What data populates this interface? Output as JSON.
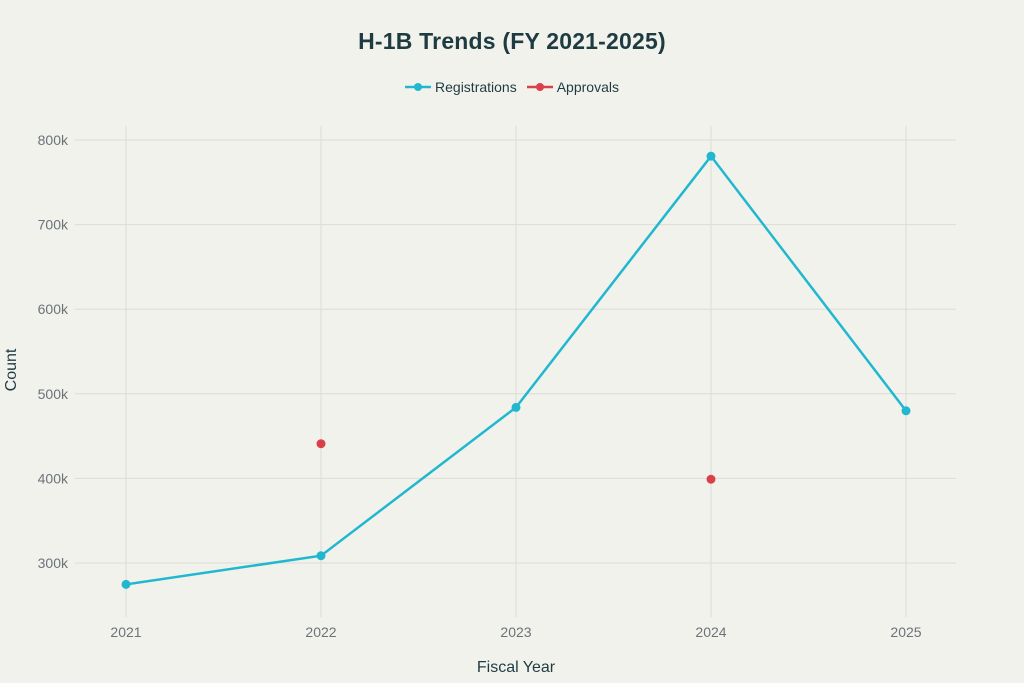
{
  "title": "H-1B Trends (FY 2021-2025)",
  "legend": [
    {
      "label": "Registrations",
      "color": "#21b8cf"
    },
    {
      "label": "Approvals",
      "color": "#d9404a"
    }
  ],
  "axes": {
    "x_title": "Fiscal Year",
    "y_title": "Count",
    "x_ticks": [
      "2021",
      "2022",
      "2023",
      "2024",
      "2025"
    ],
    "y_ticks": [
      "300k",
      "400k",
      "500k",
      "600k",
      "700k",
      "800k"
    ]
  },
  "chart_data": {
    "type": "line",
    "title": "H-1B Trends (FY 2021-2025)",
    "xlabel": "Fiscal Year",
    "ylabel": "Count",
    "categories": [
      "2021",
      "2022",
      "2023",
      "2024",
      "2025"
    ],
    "series": [
      {
        "name": "Registrations",
        "mode": "lines+markers",
        "color": "#21b8cf",
        "values": [
          274737,
          308613,
          483927,
          780884,
          479953
        ]
      },
      {
        "name": "Approvals",
        "mode": "markers",
        "color": "#d9404a",
        "values": [
          null,
          441000,
          null,
          399000,
          null
        ]
      }
    ],
    "ylim": [
      250000,
      815000
    ],
    "y_tick_values": [
      300000,
      400000,
      500000,
      600000,
      700000,
      800000
    ],
    "grid": true,
    "legend_position": "top-center"
  }
}
